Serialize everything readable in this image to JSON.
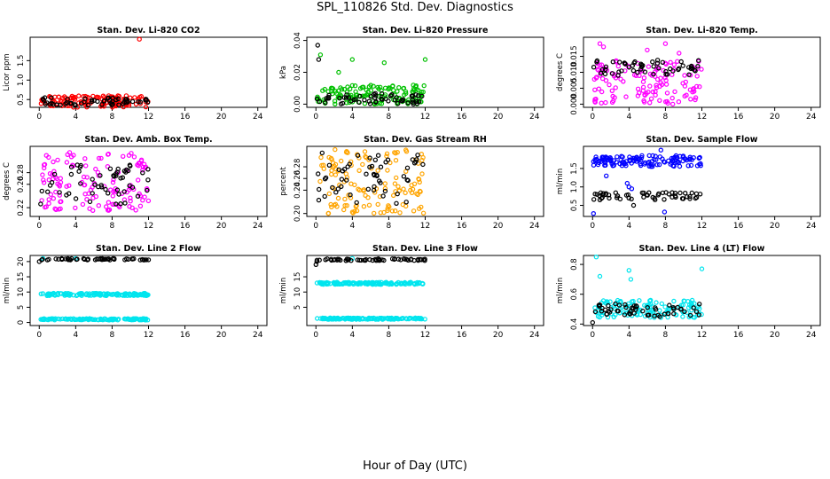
{
  "figure": {
    "title": "SPL_110826  Std. Dev. Diagnostics",
    "xlabel": "Hour of Day (UTC)"
  },
  "chart_data": [
    {
      "type": "scatter",
      "title": "Stan. Dev. Li-820 CO2",
      "ylabel": "Licor ppm",
      "xlim": [
        -1,
        25
      ],
      "ylim": [
        0.3,
        2.1
      ],
      "xticks": [
        "0",
        "4",
        "8",
        "12",
        "16",
        "20",
        "24"
      ],
      "yticks": [
        "0.5",
        "1.0",
        "1.5"
      ],
      "series": [
        {
          "color": "#ff0000",
          "band": [
            0.3,
            0.6
          ],
          "extra": [
            [
              11.0,
              2.05
            ]
          ]
        },
        {
          "color": "#000000",
          "band": [
            0.35,
            0.55
          ],
          "extra": []
        }
      ]
    },
    {
      "type": "scatter",
      "title": "Stan. Dev. Li-820 Pressure",
      "ylabel": "kPa",
      "xlim": [
        -1,
        25
      ],
      "ylim": [
        -0.002,
        0.042
      ],
      "xticks": [
        "0",
        "4",
        "8",
        "12",
        "16",
        "20",
        "24"
      ],
      "yticks": [
        "0.00",
        "0.02",
        "0.04"
      ],
      "series": [
        {
          "color": "#00c000",
          "band": [
            0.0,
            0.012
          ],
          "extra": [
            [
              0.5,
              0.031
            ],
            [
              4.0,
              0.028
            ],
            [
              7.5,
              0.026
            ],
            [
              12.0,
              0.028
            ],
            [
              2.5,
              0.02
            ]
          ]
        },
        {
          "color": "#000000",
          "band": [
            0.0,
            0.007
          ],
          "extra": [
            [
              0.2,
              0.037
            ],
            [
              0.3,
              0.028
            ]
          ]
        }
      ]
    },
    {
      "type": "scatter",
      "title": "Stan. Dev. Li-820 Temp.",
      "ylabel": "degrees C",
      "xlim": [
        -1,
        25
      ],
      "ylim": [
        -0.001,
        0.021
      ],
      "xticks": [
        "0",
        "4",
        "8",
        "12",
        "16",
        "20",
        "24"
      ],
      "yticks": [
        "0.000",
        "0.005",
        "0.010",
        "0.015"
      ],
      "series": [
        {
          "color": "#ff00ff",
          "band": [
            0.0,
            0.014
          ],
          "extra": [
            [
              0.8,
              0.019
            ],
            [
              1.2,
              0.018
            ],
            [
              6.0,
              0.017
            ],
            [
              8.0,
              0.019
            ],
            [
              9.5,
              0.016
            ]
          ]
        },
        {
          "color": "#000000",
          "band": [
            0.009,
            0.014
          ],
          "extra": []
        }
      ]
    },
    {
      "type": "scatter",
      "title": "Stan. Dev. Amb. Box Temp.",
      "ylabel": "degrees C",
      "xlim": [
        -1,
        25
      ],
      "ylim": [
        0.205,
        0.325
      ],
      "xticks": [
        "0",
        "4",
        "8",
        "12",
        "16",
        "20",
        "24"
      ],
      "yticks": [
        "0.22",
        "0.26",
        "0.28"
      ],
      "series": [
        {
          "color": "#ff00ff",
          "band": [
            0.215,
            0.315
          ],
          "extra": []
        },
        {
          "color": "#000000",
          "band": [
            0.225,
            0.3
          ],
          "extra": []
        }
      ]
    },
    {
      "type": "scatter",
      "title": "Stan. Dev. Gas Stream RH",
      "ylabel": "percent",
      "xlim": [
        -1,
        25
      ],
      "ylim": [
        0.195,
        0.315
      ],
      "xticks": [
        "0",
        "4",
        "8",
        "12",
        "16",
        "20",
        "24"
      ],
      "yticks": [
        "0.20",
        "0.24",
        "0.26",
        "0.28"
      ],
      "series": [
        {
          "color": "#ffa500",
          "band": [
            0.2,
            0.31
          ],
          "extra": []
        },
        {
          "color": "#000000",
          "band": [
            0.215,
            0.305
          ],
          "extra": []
        }
      ]
    },
    {
      "type": "scatter",
      "title": "Stan. Dev. Sample Flow",
      "ylabel": "ml/min",
      "xlim": [
        -1,
        25
      ],
      "ylim": [
        0.2,
        2.1
      ],
      "xticks": [
        "0",
        "4",
        "8",
        "12",
        "16",
        "20",
        "24"
      ],
      "yticks": [
        "0.5",
        "1.0",
        "1.5"
      ],
      "series": [
        {
          "color": "#0000ff",
          "band": [
            1.55,
            1.85
          ],
          "extra": [
            [
              0.1,
              0.28
            ],
            [
              7.9,
              0.32
            ],
            [
              4.0,
              1.0
            ],
            [
              4.3,
              0.95
            ],
            [
              3.8,
              1.1
            ],
            [
              7.5,
              2.0
            ],
            [
              1.5,
              1.3
            ]
          ]
        },
        {
          "color": "#000000",
          "band": [
            0.65,
            0.85
          ],
          "extra": [
            [
              4.5,
              0.5
            ]
          ]
        }
      ]
    },
    {
      "type": "scatter",
      "title": "Stan. Dev. Line 2 Flow",
      "ylabel": "ml/min",
      "xlim": [
        -1,
        25
      ],
      "ylim": [
        -1,
        22
      ],
      "xticks": [
        "0",
        "4",
        "8",
        "12",
        "16",
        "20",
        "24"
      ],
      "yticks": [
        "0",
        "5",
        "10",
        "15",
        "20"
      ],
      "series": [
        {
          "color": "#00e5ee",
          "band": [
            8.8,
            9.6
          ],
          "extra": []
        },
        {
          "color": "#00e5ee",
          "band": [
            0.8,
            1.3
          ],
          "extra": [
            [
              4.0,
              21.0
            ],
            [
              0.4,
              21.0
            ]
          ]
        },
        {
          "color": "#000000",
          "band": [
            20.5,
            21.0
          ],
          "extra": [
            [
              0.0,
              20.0
            ]
          ]
        }
      ]
    },
    {
      "type": "scatter",
      "title": "Stan. Dev. Line 3 Flow",
      "ylabel": "ml/min",
      "xlim": [
        -1,
        25
      ],
      "ylim": [
        -1,
        22
      ],
      "xticks": [
        "0",
        "4",
        "8",
        "12",
        "16",
        "20",
        "24"
      ],
      "yticks": [
        "5",
        "10",
        "15"
      ],
      "series": [
        {
          "color": "#00e5ee",
          "band": [
            12.5,
            13.2
          ],
          "extra": []
        },
        {
          "color": "#00e5ee",
          "band": [
            1.0,
            1.5
          ],
          "extra": [
            [
              4.0,
              21.0
            ]
          ]
        },
        {
          "color": "#000000",
          "band": [
            20.3,
            20.9
          ],
          "extra": [
            [
              0.0,
              19.0
            ],
            [
              0.1,
              20.0
            ]
          ]
        }
      ]
    },
    {
      "type": "scatter",
      "title": "Stan. Dev. Line 4 (LT) Flow",
      "ylabel": "ml/min",
      "xlim": [
        -1,
        25
      ],
      "ylim": [
        0.39,
        0.86
      ],
      "xticks": [
        "0",
        "4",
        "8",
        "12",
        "16",
        "20",
        "24"
      ],
      "yticks": [
        "0.4",
        "0.6",
        "0.8"
      ],
      "series": [
        {
          "color": "#00e5ee",
          "band": [
            0.44,
            0.56
          ],
          "extra": [
            [
              0.4,
              0.85
            ],
            [
              0.8,
              0.72
            ],
            [
              4.0,
              0.76
            ],
            [
              4.2,
              0.7
            ],
            [
              12.0,
              0.77
            ]
          ]
        },
        {
          "color": "#000000",
          "band": [
            0.45,
            0.54
          ],
          "extra": [
            [
              0.0,
              0.41
            ]
          ]
        }
      ]
    }
  ]
}
